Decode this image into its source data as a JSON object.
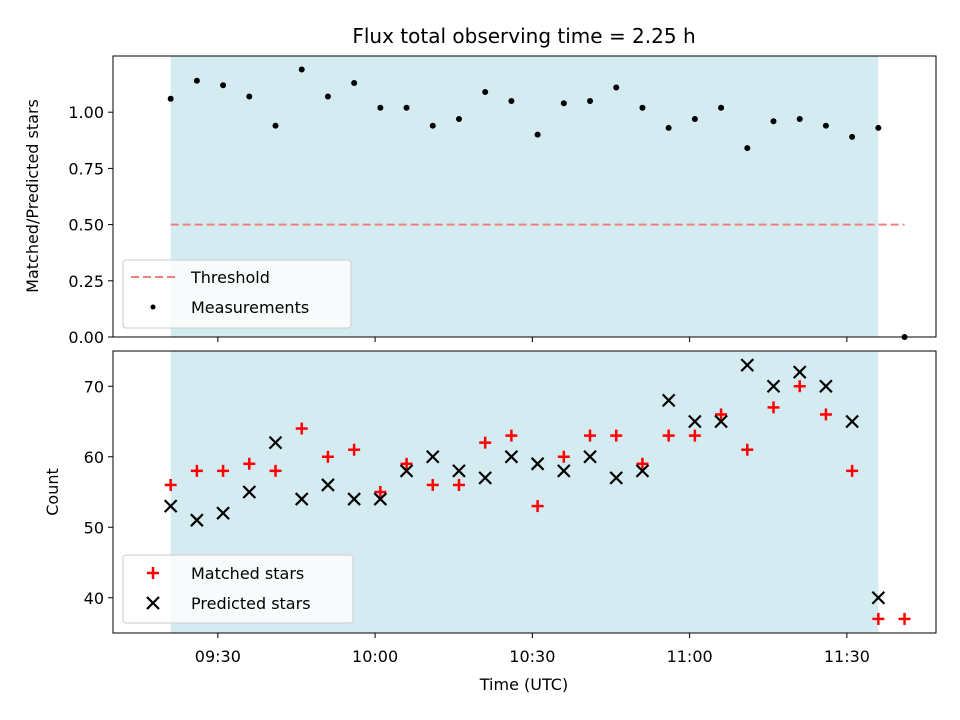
{
  "chart_data": [
    {
      "type": "scatter",
      "title": "Flux total observing time = 2.25 h",
      "xlabel": "",
      "ylabel": "Matched/Predicted stars",
      "ylim": [
        0,
        1.25
      ],
      "yticks": [
        "0.00",
        "0.25",
        "0.50",
        "0.75",
        "1.00"
      ],
      "ytick_values": [
        0,
        0.25,
        0.5,
        0.75,
        1.0
      ],
      "xlim": [
        "09:10",
        "11:47"
      ],
      "observing_window": [
        "09:21",
        "11:36"
      ],
      "colors": {
        "window": "#d4ebf1",
        "threshold": "#f08080",
        "measurements": "#000000"
      },
      "threshold": {
        "name": "Threshold",
        "value": 0.5,
        "x": [
          "09:21",
          "11:41"
        ]
      },
      "series": [
        {
          "name": "Measurements",
          "x": [
            "09:21",
            "09:26",
            "09:31",
            "09:36",
            "09:41",
            "09:46",
            "09:51",
            "09:56",
            "10:01",
            "10:06",
            "10:11",
            "10:16",
            "10:21",
            "10:26",
            "10:31",
            "10:36",
            "10:41",
            "10:46",
            "10:51",
            "10:56",
            "11:01",
            "11:06",
            "11:11",
            "11:16",
            "11:21",
            "11:26",
            "11:31",
            "11:36",
            "11:41"
          ],
          "y": [
            1.06,
            1.14,
            1.12,
            1.07,
            0.94,
            1.19,
            1.07,
            1.13,
            1.02,
            1.02,
            0.94,
            0.97,
            1.09,
            1.05,
            0.9,
            1.04,
            1.05,
            1.11,
            1.02,
            0.93,
            0.97,
            1.02,
            0.84,
            0.96,
            0.97,
            0.94,
            0.89,
            0.93,
            0.0
          ]
        }
      ],
      "legend": {
        "position": "lower-left"
      },
      "grid": false
    },
    {
      "type": "scatter",
      "title": "",
      "xlabel": "Time (UTC)",
      "ylabel": "Count",
      "ylim": [
        35,
        75
      ],
      "yticks": [
        "40",
        "50",
        "60",
        "70"
      ],
      "ytick_values": [
        40,
        50,
        60,
        70
      ],
      "xlim": [
        "09:10",
        "11:47"
      ],
      "xticks": [
        "09:30",
        "10:00",
        "10:30",
        "11:00",
        "11:30"
      ],
      "observing_window": [
        "09:21",
        "11:36"
      ],
      "colors": {
        "window": "#d4ebf1",
        "matched": "#ff0000",
        "predicted": "#000000"
      },
      "series": [
        {
          "name": "Matched stars",
          "marker": "plus",
          "x": [
            "09:21",
            "09:26",
            "09:31",
            "09:36",
            "09:41",
            "09:46",
            "09:51",
            "09:56",
            "10:01",
            "10:06",
            "10:11",
            "10:16",
            "10:21",
            "10:26",
            "10:31",
            "10:36",
            "10:41",
            "10:46",
            "10:51",
            "10:56",
            "11:01",
            "11:06",
            "11:11",
            "11:16",
            "11:21",
            "11:26",
            "11:31",
            "11:36",
            "11:41"
          ],
          "y": [
            56,
            58,
            58,
            59,
            58,
            64,
            60,
            61,
            55,
            59,
            56,
            56,
            62,
            63,
            53,
            60,
            63,
            63,
            59,
            63,
            63,
            66,
            61,
            67,
            70,
            66,
            58,
            37,
            37
          ]
        },
        {
          "name": "Predicted stars",
          "marker": "x",
          "x": [
            "09:21",
            "09:26",
            "09:31",
            "09:36",
            "09:41",
            "09:46",
            "09:51",
            "09:56",
            "10:01",
            "10:06",
            "10:11",
            "10:16",
            "10:21",
            "10:26",
            "10:31",
            "10:36",
            "10:41",
            "10:46",
            "10:51",
            "10:56",
            "11:01",
            "11:06",
            "11:11",
            "11:16",
            "11:21",
            "11:26",
            "11:31",
            "11:36"
          ],
          "y": [
            53,
            51,
            52,
            55,
            62,
            54,
            56,
            54,
            54,
            58,
            60,
            58,
            57,
            60,
            59,
            58,
            60,
            57,
            58,
            68,
            65,
            65,
            73,
            70,
            72,
            70,
            65,
            40
          ]
        }
      ],
      "legend": {
        "position": "lower-left"
      },
      "grid": false
    }
  ]
}
